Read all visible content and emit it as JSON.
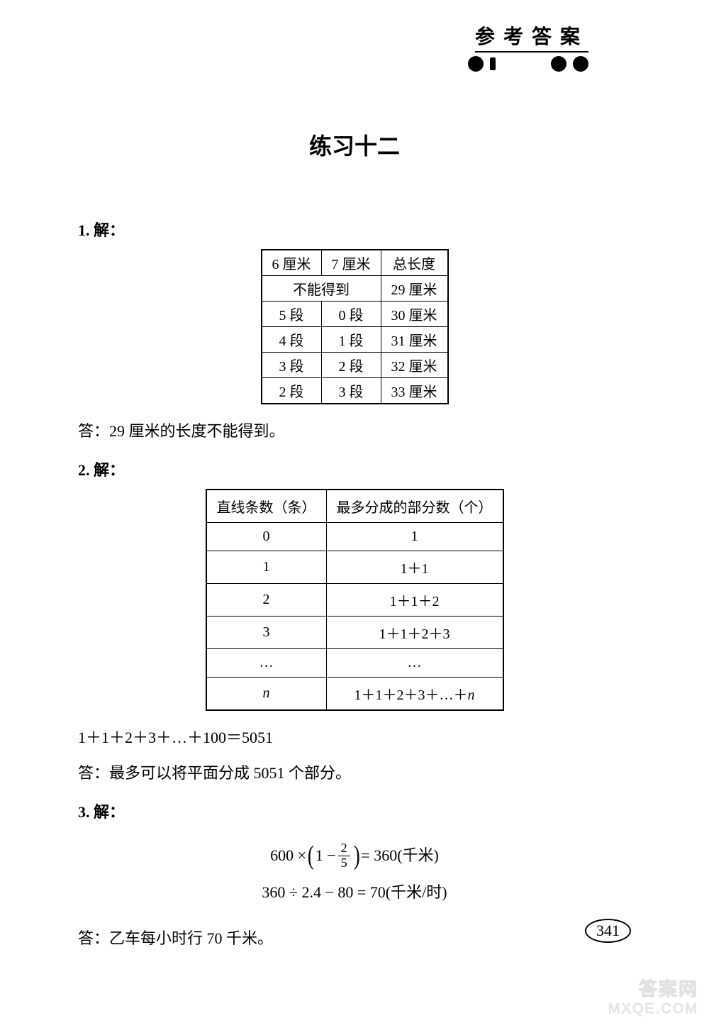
{
  "header": {
    "title": "参考答案"
  },
  "chapter": {
    "title": "练习十二"
  },
  "problem1": {
    "label": "1. 解：",
    "table": {
      "headers": [
        "6 厘米",
        "7 厘米",
        "总长度"
      ],
      "row_cannot": {
        "merged": "不能得到",
        "total": "29 厘米"
      },
      "rows": [
        {
          "c1": "5 段",
          "c2": "0 段",
          "c3": "30 厘米"
        },
        {
          "c1": "4 段",
          "c2": "1 段",
          "c3": "31 厘米"
        },
        {
          "c1": "3 段",
          "c2": "2 段",
          "c3": "32 厘米"
        },
        {
          "c1": "2 段",
          "c2": "3 段",
          "c3": "33 厘米"
        }
      ]
    },
    "answer": "答：29 厘米的长度不能得到。"
  },
  "problem2": {
    "label": "2. 解：",
    "table": {
      "header1": "直线条数（条）",
      "header2": "最多分成的部分数（个）",
      "rows": [
        {
          "c1": "0",
          "c2": "1"
        },
        {
          "c1": "1",
          "c2": "1＋1"
        },
        {
          "c1": "2",
          "c2": "1＋1＋2"
        },
        {
          "c1": "3",
          "c2": "1＋1＋2＋3"
        },
        {
          "c1": "…",
          "c2": "…"
        },
        {
          "c1": "n",
          "c2": "1＋1＋2＋3＋…＋n",
          "italic": true
        }
      ]
    },
    "formula": "1＋1＋2＋3＋…＋100＝5051",
    "answer": "答：最多可以将平面分成 5051 个部分。"
  },
  "problem3": {
    "label": "3. 解：",
    "eq1": {
      "prefix": "600 ×",
      "inner_prefix": "1 −",
      "frac_num": "2",
      "frac_den": "5",
      "suffix": " = 360(千米)"
    },
    "eq2": "360 ÷ 2.4 − 80 = 70(千米/时)",
    "answer": "答：乙车每小时行 70 千米。"
  },
  "page_number": "341",
  "watermark": {
    "line1": "答案网",
    "line2": "MXQE.COM"
  },
  "colors": {
    "text": "#000000",
    "background": "#ffffff",
    "border": "#000000"
  }
}
